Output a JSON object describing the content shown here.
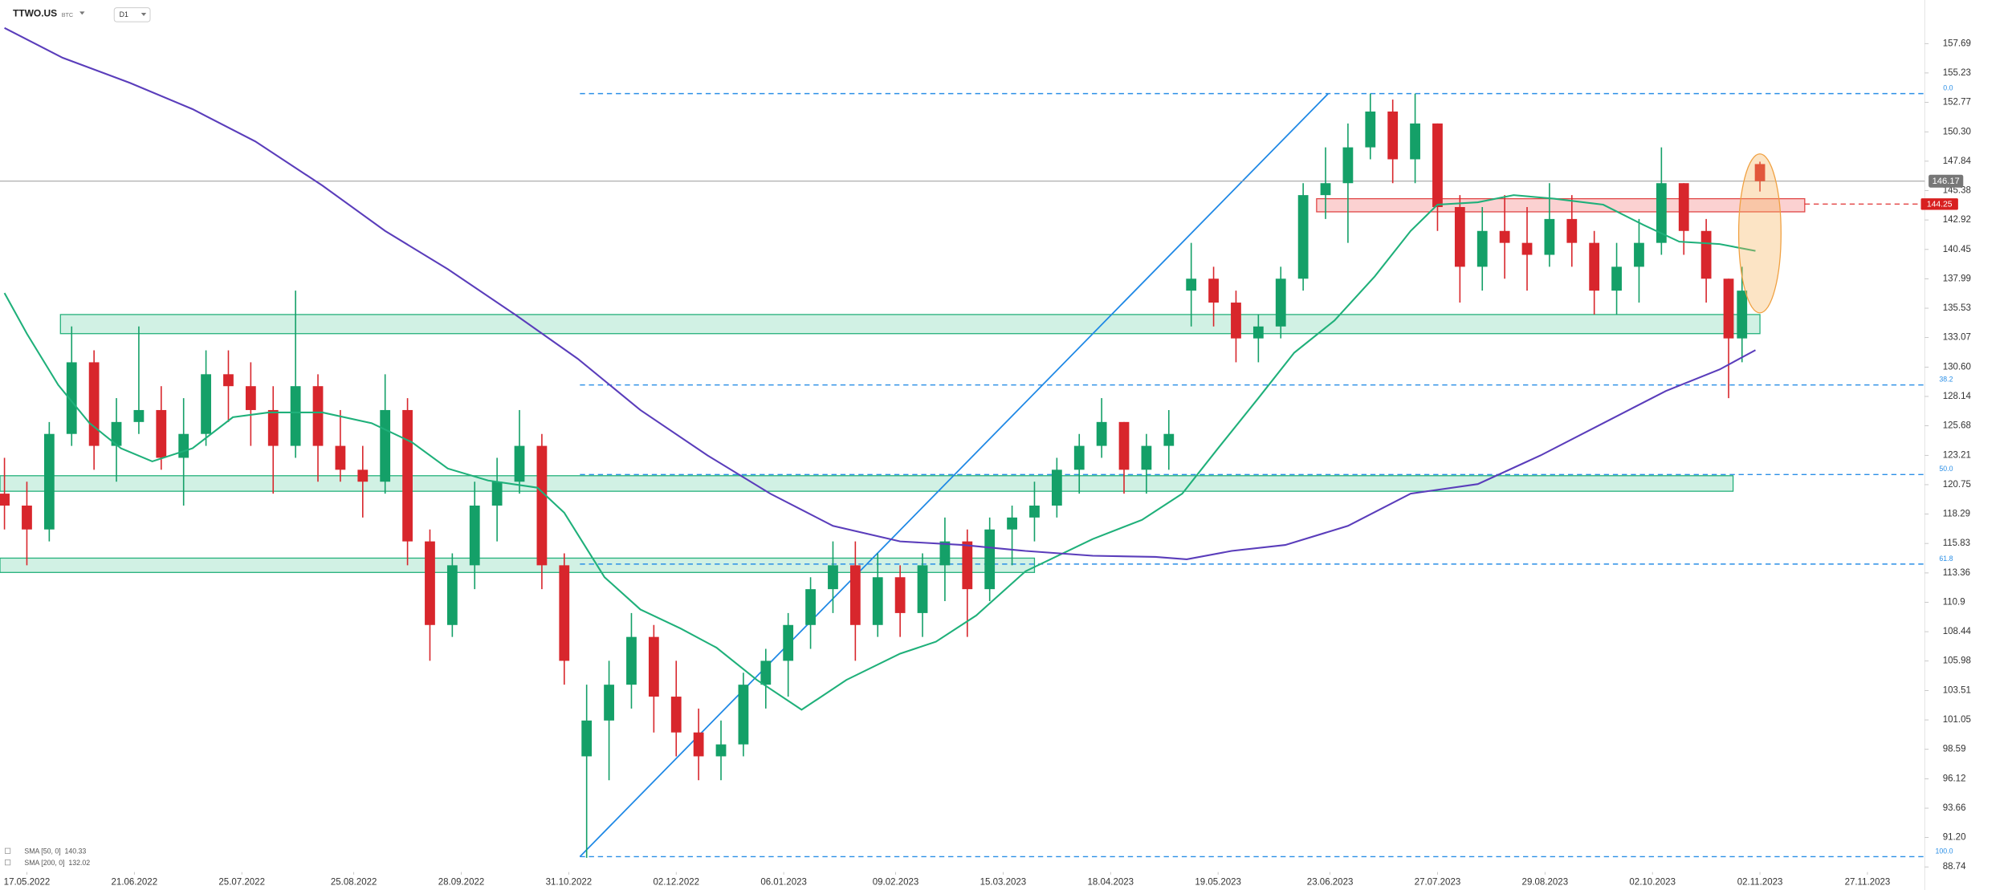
{
  "header": {
    "symbol": "TTWO.US",
    "badge": "BTC",
    "timeframe": "D1"
  },
  "chart_data": {
    "type": "candlestick",
    "up_color": "#14a068",
    "down_color": "#d8262c",
    "x": [
      1,
      6,
      11,
      16,
      21,
      26,
      31,
      36,
      41,
      46,
      51,
      56,
      61,
      66,
      71,
      76,
      81,
      86,
      91,
      96,
      101,
      106,
      111,
      116,
      121,
      126,
      131,
      136,
      141,
      146,
      151,
      156,
      161,
      166,
      171,
      176,
      181,
      186,
      191,
      196,
      201,
      206,
      211,
      216,
      221,
      226,
      231,
      236,
      241,
      246,
      251,
      256,
      261,
      266,
      271,
      276,
      281,
      286,
      291,
      296,
      301,
      306,
      311,
      316,
      321,
      326,
      331,
      336,
      341,
      346,
      351,
      356,
      361,
      366,
      371,
      376,
      381,
      386,
      389,
      393
    ],
    "open": [
      120,
      119,
      117,
      125,
      131,
      124,
      126,
      127,
      123,
      125,
      130,
      129,
      127,
      124,
      129,
      124,
      122,
      121,
      127,
      116,
      109,
      114,
      119,
      121,
      124,
      114,
      98,
      101,
      104,
      108,
      103,
      100,
      98,
      99,
      104,
      106,
      109,
      112,
      114,
      109,
      113,
      110,
      114,
      116,
      112,
      117,
      118,
      119,
      122,
      124,
      126,
      122,
      124,
      137,
      138,
      136,
      133,
      134,
      138,
      145,
      146,
      149,
      152,
      148,
      151,
      144,
      139,
      142,
      141,
      140,
      143,
      141,
      137,
      139,
      141,
      146,
      142,
      138,
      133,
      147.6
    ],
    "high": [
      123,
      121,
      126,
      134,
      132,
      128,
      134,
      129,
      128,
      132,
      132,
      131,
      129,
      137,
      130,
      127,
      124,
      130,
      128,
      117,
      115,
      121,
      123,
      127,
      125,
      115,
      104,
      106,
      110,
      109,
      106,
      102,
      101,
      105,
      107,
      110,
      113,
      116,
      116,
      115,
      114,
      115,
      118,
      117,
      118,
      119,
      121,
      123,
      125,
      128,
      126,
      125,
      127,
      141,
      139,
      137,
      135,
      139,
      146,
      149,
      151,
      153.5,
      153,
      153.5,
      151,
      145,
      144,
      145,
      144,
      146,
      145,
      142,
      141,
      143,
      149,
      146,
      143,
      138,
      139,
      147.8
    ],
    "low": [
      117,
      114,
      116,
      124,
      122,
      121,
      125,
      122,
      119,
      124,
      126,
      124,
      120,
      123,
      121,
      121,
      118,
      120,
      114,
      106,
      108,
      112,
      116,
      120,
      112,
      104,
      89.5,
      96,
      102,
      100,
      98,
      96,
      96,
      98,
      102,
      103,
      107,
      110,
      106,
      108,
      108,
      108,
      111,
      108,
      111,
      114,
      116,
      118,
      120,
      123,
      120,
      120,
      122,
      134,
      134,
      131,
      131,
      133,
      137,
      143,
      141,
      148,
      146,
      146,
      142,
      136,
      137,
      138,
      137,
      139,
      139,
      135,
      135,
      136,
      140,
      140,
      136,
      128,
      131,
      145.3
    ],
    "close": [
      119,
      117,
      125,
      131,
      124,
      126,
      127,
      123,
      125,
      130,
      129,
      127,
      124,
      129,
      124,
      122,
      121,
      127,
      116,
      109,
      114,
      119,
      121,
      124,
      114,
      106,
      101,
      104,
      108,
      103,
      100,
      98,
      99,
      104,
      106,
      109,
      112,
      114,
      109,
      113,
      110,
      114,
      116,
      112,
      117,
      118,
      119,
      122,
      124,
      126,
      122,
      124,
      125,
      138,
      136,
      133,
      134,
      138,
      145,
      146,
      149,
      152,
      148,
      151,
      144,
      139,
      142,
      141,
      140,
      143,
      141,
      137,
      139,
      141,
      146,
      142,
      138,
      133,
      137,
      146.17
    ],
    "series": [
      {
        "name": "SMA [50, 0]",
        "color": "#1fb07a",
        "x": [
          1,
          6,
          13,
          20,
          27,
          34,
          43,
          52,
          60,
          72,
          83,
          92,
          100,
          109,
          120,
          126,
          135,
          143,
          152,
          160,
          169,
          179,
          189,
          201,
          209,
          218,
          229,
          244,
          255,
          264,
          272,
          281,
          289,
          298,
          307,
          315,
          321,
          330,
          338,
          347,
          358,
          367,
          375,
          384,
          392
        ],
        "values": [
          136.8,
          133.4,
          129.1,
          125.9,
          123.8,
          122.7,
          123.8,
          126.4,
          126.8,
          126.8,
          125.9,
          124.3,
          122.1,
          121.1,
          120.5,
          118.4,
          113.0,
          110.3,
          108.7,
          107.1,
          104.4,
          101.9,
          104.4,
          106.6,
          107.6,
          109.8,
          113.5,
          116.2,
          117.8,
          120.0,
          123.8,
          128.0,
          131.8,
          134.5,
          138.2,
          142.0,
          144.2,
          144.4,
          145.0,
          144.7,
          144.2,
          142.5,
          141.1,
          140.9,
          140.33
        ]
      },
      {
        "name": "SMA [200, 0]",
        "color": "#5a3dbb",
        "x": [
          1,
          14,
          29,
          43,
          57,
          72,
          86,
          100,
          115,
          129,
          143,
          158,
          172,
          186,
          201,
          215,
          229,
          244,
          258,
          265,
          275,
          287,
          301,
          315,
          330,
          344,
          358,
          372,
          384,
          392
        ],
        "values": [
          159.0,
          156.5,
          154.4,
          152.2,
          149.5,
          145.8,
          142.0,
          138.8,
          135.0,
          131.3,
          127.0,
          123.2,
          120.0,
          117.3,
          116.0,
          115.7,
          115.2,
          114.8,
          114.7,
          114.5,
          115.2,
          115.7,
          117.3,
          120.0,
          120.8,
          123.2,
          125.9,
          128.6,
          130.4,
          132.02
        ]
      }
    ],
    "xlim": [
      0,
      430
    ],
    "xticks": [
      {
        "value": 6,
        "label": "17.05.2022"
      },
      {
        "value": 30,
        "label": "21.06.2022"
      },
      {
        "value": 54,
        "label": "25.07.2022"
      },
      {
        "value": 79,
        "label": "25.08.2022"
      },
      {
        "value": 103,
        "label": "28.09.2022"
      },
      {
        "value": 127,
        "label": "31.10.2022"
      },
      {
        "value": 151,
        "label": "02.12.2022"
      },
      {
        "value": 175,
        "label": "06.01.2023"
      },
      {
        "value": 200,
        "label": "09.02.2023"
      },
      {
        "value": 224,
        "label": "15.03.2023"
      },
      {
        "value": 248,
        "label": "18.04.2023"
      },
      {
        "value": 272,
        "label": "19.05.2023"
      },
      {
        "value": 297,
        "label": "23.06.2023"
      },
      {
        "value": 321,
        "label": "27.07.2023"
      },
      {
        "value": 345,
        "label": "29.08.2023"
      },
      {
        "value": 369,
        "label": "02.10.2023"
      },
      {
        "value": 393,
        "label": "02.11.2023"
      },
      {
        "value": 417,
        "label": "27.11.2023"
      }
    ],
    "ylim": [
      88.31,
      161.34
    ],
    "yticks": [
      157.69,
      155.23,
      152.77,
      {
        "value": 150.3,
        "label": "150.30"
      },
      147.84,
      145.38,
      142.92,
      140.45,
      137.99,
      135.53,
      133.07,
      {
        "value": 130.6,
        "label": "130.60"
      },
      128.14,
      125.68,
      123.21,
      120.75,
      118.29,
      115.83,
      113.36,
      110.9,
      108.44,
      105.98,
      103.51,
      101.05,
      98.59,
      96.12,
      93.66,
      {
        "value": 91.2,
        "label": "91.20"
      },
      88.74
    ],
    "fib_start": 129.5,
    "fib_levels": [
      {
        "label": "0.0",
        "value": 153.5
      },
      {
        "label": "38.2",
        "value": 129.1
      },
      {
        "label": "50.0",
        "value": 121.6
      },
      {
        "label": "61.8",
        "value": 114.1
      },
      {
        "label": "100.0",
        "value": 89.6
      }
    ],
    "zones": [
      {
        "from": 133.4,
        "to": 135.0,
        "x": [
          13.5,
          393
        ]
      },
      {
        "from": 120.2,
        "to": 121.5,
        "x": [
          0,
          387
        ]
      },
      {
        "from": 113.4,
        "to": 114.6,
        "x": [
          0,
          231
        ]
      }
    ],
    "resistance_zone": {
      "from": 143.6,
      "to": 144.7,
      "x": [
        294,
        403
      ]
    },
    "alert_line": {
      "value": 144.25
    },
    "trendline": {
      "x": [
        129.5,
        296.6
      ],
      "y": [
        89.6,
        153.5
      ]
    }
  }
}
